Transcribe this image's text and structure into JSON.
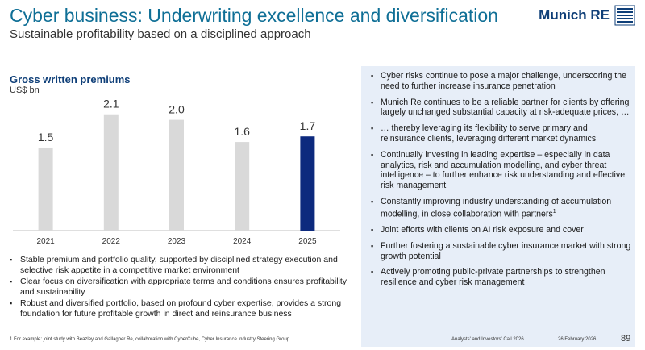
{
  "header": {
    "title": "Cyber business: Underwriting excellence and diversification",
    "subtitle": "Sustainable profitability based on a disciplined approach",
    "logo_text": "Munich RE"
  },
  "chart_data": {
    "type": "bar",
    "title": "Gross written premiums",
    "ylabel": "US$ bn",
    "categories": [
      "2021",
      "2022",
      "2023",
      "2024",
      "2025"
    ],
    "values": [
      1.5,
      2.1,
      2.0,
      1.6,
      1.7
    ],
    "value_labels": [
      "1.5",
      "2.1",
      "2.0",
      "1.6",
      "1.7"
    ],
    "ylim": [
      0,
      2.3
    ],
    "colors": [
      "#d9d9d9",
      "#d9d9d9",
      "#d9d9d9",
      "#d9d9d9",
      "#0d2a7e"
    ]
  },
  "left_bullets": [
    "Stable premium and portfolio quality, supported by disciplined strategy execution and selective risk appetite in a competitive market environment",
    "Clear focus on diversification with appropriate terms and conditions ensures profitability and sustainability",
    "Robust and diversified portfolio, based on profound cyber expertise, provides a strong foundation for future profitable growth in direct and reinsurance business"
  ],
  "right_bullets": [
    "Cyber risks continue to pose a major challenge, underscoring the need to further increase insurance penetration",
    "Munich Re continues to be a reliable partner for clients by offering largely unchanged substantial capacity at risk-adequate prices, …",
    "… thereby leveraging its flexibility to serve primary and reinsurance clients, leveraging different market dynamics",
    "Continually investing in leading expertise – especially in data analytics, risk and accumulation modelling, and cyber threat intelligence – to further enhance risk understanding and effective risk management",
    "Constantly improving industry understanding of accumulation modelling, in close collaboration with partners",
    "Joint efforts with clients on AI risk exposure and cover",
    "Further fostering a sustainable cyber insurance market with strong growth potential",
    "Actively promoting public-private partnerships to strengthen resilience and cyber risk management"
  ],
  "footnote_marker": "1",
  "footer": {
    "footnote": "1 For example: joint study with Beazley and Gallagher Re, collaboration with CyberCube, Cyber Insurance Industry Steering Group",
    "event": "Analysts' and Investors' Call 2026",
    "date": "26 February 2026",
    "page": "89"
  },
  "colors": {
    "title": "#0f6f96",
    "brand": "#0f3f78",
    "panel": "#e7eef8"
  }
}
